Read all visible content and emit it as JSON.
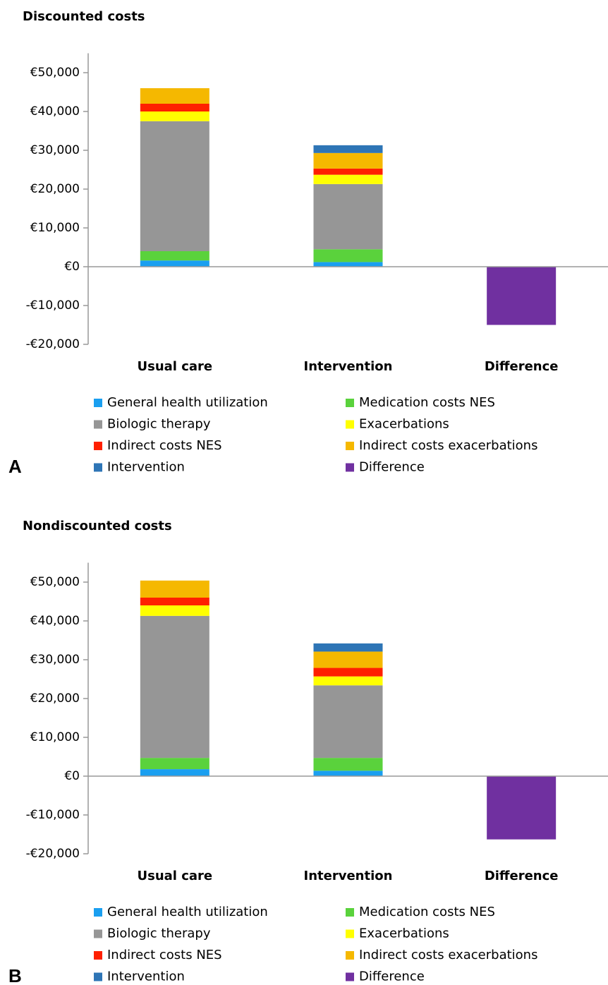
{
  "chart_data": [
    {
      "type": "stacked_bar",
      "title": "Discounted costs",
      "panel_label": "A",
      "categories": [
        "Usual care",
        "Intervention",
        "Difference"
      ],
      "ylim": [
        -20000,
        55000
      ],
      "yticks": [
        {
          "value": -20000,
          "label": "-€20,000"
        },
        {
          "value": -10000,
          "label": "-€10,000"
        },
        {
          "value": 0,
          "label": "€0"
        },
        {
          "value": 10000,
          "label": "€10,000"
        },
        {
          "value": 20000,
          "label": "€20,000"
        },
        {
          "value": 30000,
          "label": "€30,000"
        },
        {
          "value": 40000,
          "label": "€40,000"
        },
        {
          "value": 50000,
          "label": "€50,000"
        }
      ],
      "grid": false,
      "series": [
        {
          "name": "General health utilization",
          "color": "#1a9ff0",
          "values": [
            1600,
            1200,
            null
          ]
        },
        {
          "name": "Medication costs NES",
          "color": "#5ad23c",
          "values": [
            2400,
            3300,
            null
          ]
        },
        {
          "name": "Biologic therapy",
          "color": "#969696",
          "values": [
            33500,
            16800,
            null
          ]
        },
        {
          "name": "Exacerbations",
          "color": "#ffff00",
          "values": [
            2500,
            2400,
            null
          ]
        },
        {
          "name": "Indirect costs NES",
          "color": "#ff2000",
          "values": [
            2000,
            1600,
            null
          ]
        },
        {
          "name": "Indirect costs exacerbations",
          "color": "#f5b800",
          "values": [
            4000,
            4000,
            null
          ]
        },
        {
          "name": "Intervention",
          "color": "#2e75b6",
          "values": [
            null,
            2000,
            null
          ]
        },
        {
          "name": "Difference",
          "color": "#7030a0",
          "values": [
            null,
            null,
            -15000
          ]
        }
      ]
    },
    {
      "type": "stacked_bar",
      "title": "Nondiscounted costs",
      "panel_label": "B",
      "categories": [
        "Usual care",
        "Intervention",
        "Difference"
      ],
      "ylim": [
        -20000,
        55000
      ],
      "yticks": [
        {
          "value": -20000,
          "label": "-€20,000"
        },
        {
          "value": -10000,
          "label": "-€10,000"
        },
        {
          "value": 0,
          "label": "€0"
        },
        {
          "value": 10000,
          "label": "€10,000"
        },
        {
          "value": 20000,
          "label": "€20,000"
        },
        {
          "value": 30000,
          "label": "€30,000"
        },
        {
          "value": 40000,
          "label": "€40,000"
        },
        {
          "value": 50000,
          "label": "€50,000"
        }
      ],
      "grid": false,
      "series": [
        {
          "name": "General health utilization",
          "color": "#1a9ff0",
          "values": [
            1800,
            1400,
            null
          ]
        },
        {
          "name": "Medication costs NES",
          "color": "#5ad23c",
          "values": [
            2900,
            3300,
            null
          ]
        },
        {
          "name": "Biologic therapy",
          "color": "#969696",
          "values": [
            36600,
            18700,
            null
          ]
        },
        {
          "name": "Exacerbations",
          "color": "#ffff00",
          "values": [
            2700,
            2300,
            null
          ]
        },
        {
          "name": "Indirect costs NES",
          "color": "#ff2000",
          "values": [
            2000,
            2200,
            null
          ]
        },
        {
          "name": "Indirect costs exacerbations",
          "color": "#f5b800",
          "values": [
            4400,
            4200,
            null
          ]
        },
        {
          "name": "Intervention",
          "color": "#2e75b6",
          "values": [
            null,
            2100,
            null
          ]
        },
        {
          "name": "Difference",
          "color": "#7030a0",
          "values": [
            null,
            null,
            -16300
          ]
        }
      ]
    }
  ]
}
